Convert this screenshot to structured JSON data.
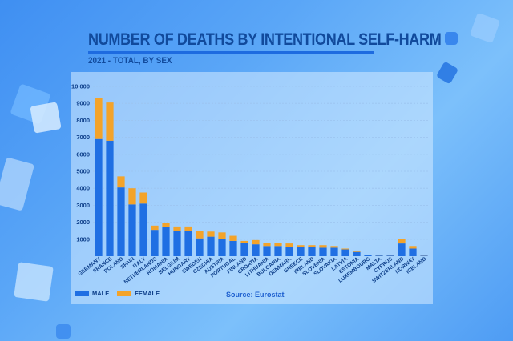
{
  "colors": {
    "male": "#1f6fe3",
    "female": "#f3a32a",
    "title": "#114a9c"
  },
  "chart_data": {
    "type": "bar",
    "stacked": true,
    "title": "NUMBER OF DEATHS BY INTENTIONAL SELF-HARM",
    "subtitle": "2021 - TOTAL, BY SEX",
    "source": "Source: Eurostat",
    "xlabel": "",
    "ylabel": "",
    "ylim": [
      0,
      10000
    ],
    "yticks": [
      {
        "v": 1000,
        "label": "1000"
      },
      {
        "v": 2000,
        "label": "2000"
      },
      {
        "v": 3000,
        "label": "3000"
      },
      {
        "v": 4000,
        "label": "4000"
      },
      {
        "v": 5000,
        "label": "5000"
      },
      {
        "v": 6000,
        "label": "6000"
      },
      {
        "v": 7000,
        "label": "7000"
      },
      {
        "v": 8000,
        "label": "8000"
      },
      {
        "v": 9000,
        "label": "9000"
      },
      {
        "v": 10000,
        "label": "10 000"
      }
    ],
    "grid": true,
    "legend_position": "bottom-left",
    "categories": [
      "GERMANY",
      "FRANCE",
      "POLAND",
      "SPAIN",
      "ITALY",
      "NETHERLANDS",
      "ROMANIA",
      "BELGIUM",
      "HUNGARY",
      "SWEDEN",
      "CZECHIA",
      "AUSTRIA",
      "PORTUGAL",
      "FINLAND",
      "CROATIA",
      "LITHUANIA",
      "BULGARIA",
      "DENMARK",
      "GREECE",
      "IRELAND",
      "SLOVENIA",
      "SLOVAKIA",
      "LATVIA",
      "ESTONIA",
      "LUXEMBOURG",
      "MALTA",
      "CYPRUS",
      "SWITZERLAND",
      "NORWAY",
      "ICELAND"
    ],
    "series": [
      {
        "name": "MALE",
        "values": [
          6900,
          6800,
          4050,
          3050,
          3100,
          1550,
          1700,
          1500,
          1500,
          1050,
          1150,
          1000,
          900,
          800,
          700,
          600,
          600,
          550,
          550,
          550,
          500,
          500,
          400,
          250,
          50,
          40,
          40,
          750,
          450,
          30
        ]
      },
      {
        "name": "FEMALE",
        "values": [
          2400,
          2250,
          650,
          950,
          650,
          250,
          250,
          250,
          250,
          450,
          300,
          400,
          300,
          100,
          250,
          200,
          200,
          200,
          100,
          100,
          150,
          100,
          50,
          50,
          20,
          10,
          10,
          250,
          150,
          10
        ]
      }
    ]
  }
}
